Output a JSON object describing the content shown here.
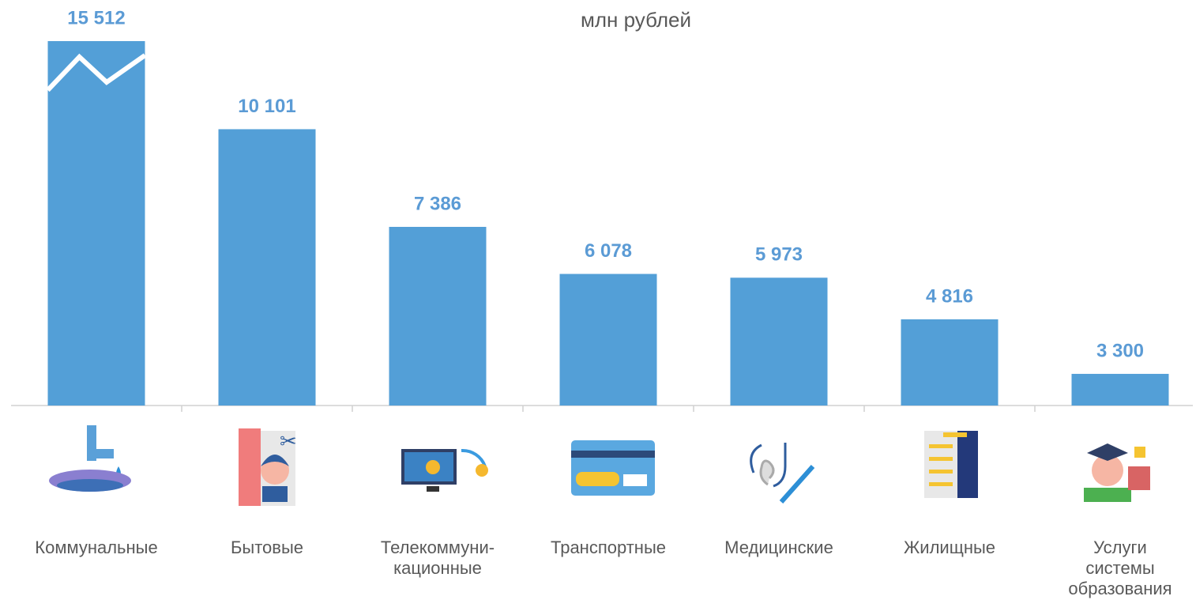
{
  "chart_data": {
    "type": "bar",
    "title": "млн рублей",
    "categories": [
      "Коммунальные",
      "Бытовые",
      "Телекоммуни-\nкационные",
      "Транспортные",
      "Медицинские",
      "Жилищные",
      "Услуги\nсистемы\nобразования"
    ],
    "values": [
      15512,
      10101,
      7386,
      6078,
      5973,
      4816,
      3300
    ],
    "value_labels": [
      "15 512",
      "10 101",
      "7 386",
      "6 078",
      "5 973",
      "4 816",
      "3 300"
    ],
    "color": "#539fd7",
    "ylim": [
      2420,
      12550
    ]
  }
}
